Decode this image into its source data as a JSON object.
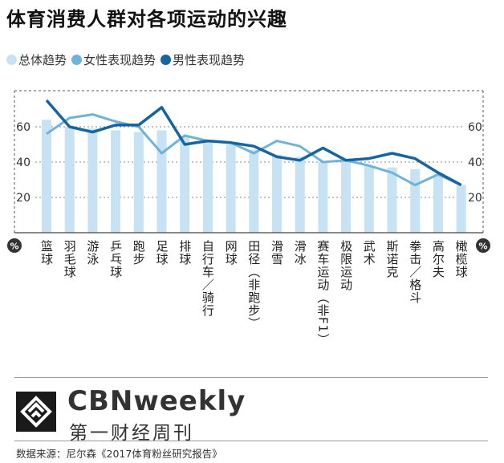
{
  "title": "体育消费人群对各项运动的兴趣",
  "colors": {
    "total": "#c6e2f3",
    "female": "#6fb3d8",
    "male": "#1665a0"
  },
  "chart_data": {
    "type": "bar",
    "title": "体育消费人群对各项运动的兴趣",
    "unit": "%",
    "categories": [
      "篮球",
      "羽毛球",
      "游泳",
      "乒乓球",
      "跑步",
      "足球",
      "排球",
      "自行车／骑行",
      "网球",
      "田径（非跑步）",
      "滑雪",
      "滑冰",
      "赛车运动（非F1）",
      "极限运动",
      "武术",
      "斯诺克",
      "拳击／格斗",
      "高尔夫",
      "橄榄球"
    ],
    "ylim": [
      0,
      80
    ],
    "yticks": [
      20,
      40,
      60
    ],
    "legend_position": "top-left",
    "series": [
      {
        "name": "总体趋势",
        "type": "bar",
        "values": [
          64,
          60,
          59,
          58,
          57,
          58,
          55,
          52,
          50,
          47,
          44,
          43,
          40,
          41,
          38,
          37,
          36,
          33,
          27
        ]
      },
      {
        "name": "女性表现趋势",
        "type": "line",
        "values": [
          56,
          65,
          67,
          63,
          60,
          45,
          55,
          52,
          51,
          45,
          52,
          49,
          40,
          41,
          38,
          34,
          27,
          33,
          27
        ]
      },
      {
        "name": "男性表现趋势",
        "type": "line",
        "values": [
          75,
          60,
          57,
          61,
          61,
          71,
          50,
          52,
          51,
          49,
          43,
          41,
          48,
          41,
          42,
          45,
          42,
          34,
          27
        ]
      }
    ]
  },
  "brand": {
    "en": "CBNweekly",
    "cn": "第一财经周刊"
  },
  "source": "数据来源：尼尔森《2017体育粉丝研究报告》"
}
